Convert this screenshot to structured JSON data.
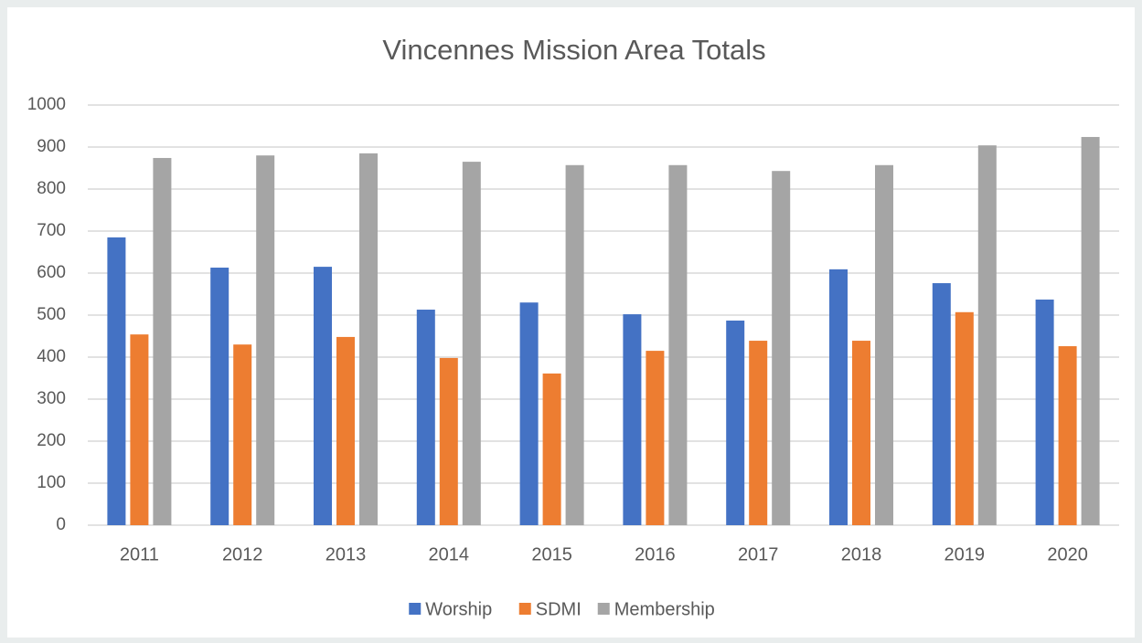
{
  "chart_data": {
    "type": "bar",
    "title": "Vincennes Mission Area Totals",
    "categories": [
      "2011",
      "2012",
      "2013",
      "2014",
      "2015",
      "2016",
      "2017",
      "2018",
      "2019",
      "2020"
    ],
    "series": [
      {
        "name": "Worship",
        "color": "#4472c4",
        "values": [
          685,
          613,
          615,
          513,
          530,
          502,
          487,
          609,
          576,
          537
        ]
      },
      {
        "name": "SDMI",
        "color": "#ed7d31",
        "values": [
          454,
          430,
          448,
          398,
          361,
          415,
          439,
          439,
          507,
          426
        ]
      },
      {
        "name": "Membership",
        "color": "#a5a5a5",
        "values": [
          874,
          880,
          885,
          865,
          857,
          857,
          843,
          857,
          904,
          924
        ]
      }
    ],
    "ylim": [
      0,
      1000
    ],
    "yticks": [
      0,
      100,
      200,
      300,
      400,
      500,
      600,
      700,
      800,
      900,
      1000
    ],
    "grid": true,
    "legend": "bottom"
  }
}
